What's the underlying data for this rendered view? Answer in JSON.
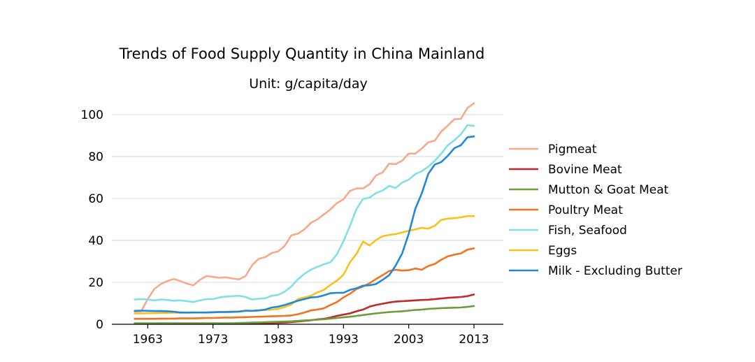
{
  "chart_data": {
    "type": "line",
    "title": "Trends of Food Supply Quantity in China Mainland",
    "subtitle": "Unit: g/capita/day",
    "xlabel": "",
    "ylabel": "",
    "xlim": [
      1957.5,
      2017.5
    ],
    "ylim": [
      0,
      108
    ],
    "grid": "horizontal",
    "legend_position": "right",
    "x_ticks": [
      1963,
      1973,
      1983,
      1993,
      2003,
      2013
    ],
    "y_ticks": [
      0,
      20,
      40,
      60,
      80,
      100
    ],
    "x": [
      1961,
      1962,
      1963,
      1964,
      1965,
      1966,
      1967,
      1968,
      1969,
      1970,
      1971,
      1972,
      1973,
      1974,
      1975,
      1976,
      1977,
      1978,
      1979,
      1980,
      1981,
      1982,
      1983,
      1984,
      1985,
      1986,
      1987,
      1988,
      1989,
      1990,
      1991,
      1992,
      1993,
      1994,
      1995,
      1996,
      1997,
      1998,
      1999,
      2000,
      2001,
      2002,
      2003,
      2004,
      2005,
      2006,
      2007,
      2008,
      2009,
      2010,
      2011,
      2012,
      2013
    ],
    "series": [
      {
        "name": "Pigmeat",
        "color": "#f9a98b",
        "values": [
          6.0,
          6.2,
          12.0,
          16.8,
          19.2,
          20.6,
          21.6,
          20.6,
          19.4,
          18.6,
          21.2,
          23.0,
          22.6,
          22.2,
          22.4,
          21.8,
          21.4,
          23.0,
          28.2,
          31.2,
          32.0,
          34.0,
          34.8,
          37.4,
          42.4,
          43.2,
          45.2,
          48.4,
          50.0,
          52.4,
          54.8,
          57.8,
          59.6,
          63.6,
          64.8,
          64.8,
          66.8,
          71.0,
          72.4,
          76.6,
          76.4,
          78.0,
          81.4,
          81.4,
          83.8,
          86.8,
          87.6,
          92.0,
          94.8,
          97.8,
          98.0,
          103.2,
          105.4
        ]
      },
      {
        "name": "Bovine Meat",
        "color": "#c0282b",
        "values": [
          0.3,
          0.3,
          0.3,
          0.3,
          0.3,
          0.3,
          0.3,
          0.3,
          0.3,
          0.3,
          0.3,
          0.3,
          0.3,
          0.3,
          0.3,
          0.3,
          0.3,
          0.3,
          0.4,
          0.5,
          0.5,
          0.6,
          0.7,
          0.8,
          1.0,
          1.3,
          1.6,
          1.9,
          2.3,
          2.6,
          3.2,
          4.0,
          4.6,
          5.2,
          6.2,
          7.0,
          8.4,
          9.2,
          9.8,
          10.4,
          10.8,
          11.0,
          11.2,
          11.4,
          11.6,
          11.7,
          12.0,
          12.3,
          12.6,
          12.8,
          13.0,
          13.4,
          14.2
        ]
      },
      {
        "name": "Mutton & Goat Meat",
        "color": "#6a9e3a",
        "values": [
          0.5,
          0.5,
          0.5,
          0.5,
          0.5,
          0.5,
          0.5,
          0.5,
          0.5,
          0.5,
          0.5,
          0.5,
          0.5,
          0.5,
          0.5,
          0.5,
          0.6,
          0.7,
          0.8,
          0.9,
          1.0,
          1.1,
          1.2,
          1.3,
          1.4,
          1.6,
          1.8,
          2.0,
          2.2,
          2.4,
          2.7,
          3.0,
          3.3,
          3.6,
          4.0,
          4.4,
          4.8,
          5.2,
          5.5,
          5.8,
          6.0,
          6.2,
          6.5,
          6.8,
          7.0,
          7.3,
          7.5,
          7.7,
          7.8,
          7.9,
          8.0,
          8.3,
          8.7
        ]
      },
      {
        "name": "Poultry Meat",
        "color": "#f07320",
        "values": [
          2.6,
          2.6,
          2.6,
          2.6,
          2.7,
          2.7,
          2.7,
          2.8,
          2.8,
          2.8,
          2.9,
          3.0,
          3.0,
          3.1,
          3.2,
          3.2,
          3.3,
          3.4,
          3.5,
          3.6,
          3.7,
          3.8,
          3.9,
          4.0,
          4.2,
          4.8,
          5.6,
          6.6,
          7.0,
          7.6,
          9.2,
          10.6,
          12.8,
          14.6,
          16.8,
          18.0,
          19.6,
          21.6,
          23.4,
          25.4,
          26.0,
          25.6,
          25.8,
          26.6,
          26.0,
          27.8,
          28.8,
          30.8,
          32.4,
          33.2,
          33.8,
          35.6,
          36.2
        ]
      },
      {
        "name": "Fish, Seafood",
        "color": "#7fe0e8",
        "values": [
          11.8,
          12.0,
          11.8,
          11.4,
          11.8,
          11.6,
          11.2,
          11.4,
          11.0,
          10.6,
          11.4,
          12.0,
          12.0,
          12.8,
          13.2,
          13.4,
          13.6,
          13.0,
          11.8,
          12.2,
          12.4,
          13.6,
          14.0,
          15.6,
          18.0,
          21.4,
          24.0,
          26.0,
          27.4,
          28.6,
          29.6,
          33.4,
          39.6,
          47.0,
          55.0,
          59.8,
          60.4,
          62.6,
          63.8,
          66.0,
          65.0,
          67.6,
          69.0,
          71.6,
          73.0,
          75.2,
          78.0,
          81.4,
          85.4,
          87.8,
          90.6,
          95.0,
          94.6
        ]
      },
      {
        "name": "Eggs",
        "color": "#f8c21a",
        "values": [
          5.2,
          5.2,
          5.3,
          5.3,
          5.4,
          5.4,
          5.5,
          5.5,
          5.5,
          5.6,
          5.6,
          5.7,
          5.8,
          5.9,
          6.0,
          6.1,
          6.2,
          6.3,
          6.4,
          6.6,
          6.8,
          7.0,
          7.4,
          8.2,
          9.4,
          12.0,
          12.8,
          13.6,
          15.2,
          16.4,
          18.8,
          20.8,
          23.6,
          29.6,
          33.6,
          39.4,
          37.6,
          40.2,
          42.0,
          42.6,
          43.0,
          43.8,
          44.6,
          45.2,
          46.0,
          45.6,
          47.0,
          49.8,
          50.4,
          50.6,
          51.0,
          51.6,
          51.6
        ]
      },
      {
        "name": "Milk - Excluding Butter",
        "color": "#1f88dc",
        "values": [
          6.4,
          6.5,
          6.4,
          6.3,
          6.3,
          6.2,
          6.0,
          5.6,
          5.6,
          5.6,
          5.6,
          5.6,
          5.7,
          5.8,
          5.8,
          5.9,
          6.0,
          6.5,
          6.4,
          6.6,
          7.0,
          8.0,
          8.4,
          9.2,
          10.2,
          11.2,
          12.0,
          12.8,
          13.0,
          13.8,
          14.8,
          15.0,
          15.0,
          16.4,
          17.2,
          18.4,
          18.6,
          19.2,
          21.2,
          23.4,
          28.0,
          33.8,
          43.2,
          55.0,
          62.4,
          71.8,
          76.2,
          77.4,
          80.4,
          84.0,
          85.4,
          89.2,
          89.6
        ]
      }
    ]
  }
}
